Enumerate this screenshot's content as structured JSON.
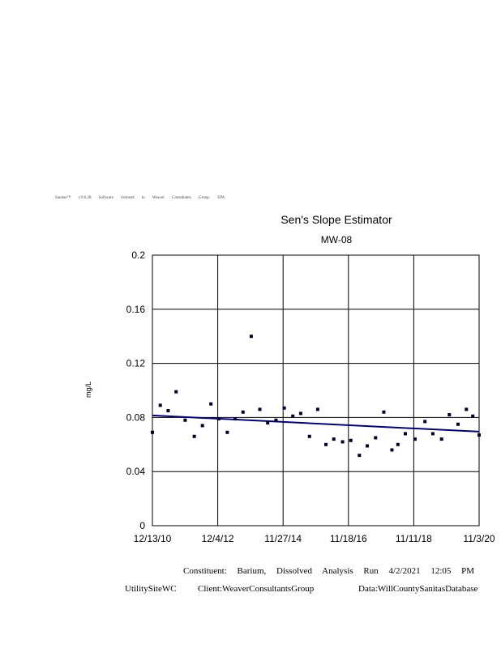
{
  "header": {
    "license_text": "Sanitas™ v.9.6.28 Software licensed to Weaver Consultants Group. EPA"
  },
  "footer": {
    "constituent_line": "Constituent: Barium, Dissolved Analysis Run 4/2/2021 12:05 PM",
    "utility": "UtilitySiteWC",
    "client": "Client:WeaverConsultantsGroup",
    "data_source": "Data:WillCountySanitasDatabase"
  },
  "colors": {
    "points": "#000033",
    "trend_line": "#000080",
    "grid": "#000000"
  },
  "chart_data": {
    "type": "scatter",
    "title": "Sen's Slope Estimator",
    "subtitle": "MW-08",
    "ylabel": "mg/L",
    "xlabel": "",
    "ylim": [
      0,
      0.2
    ],
    "xlim": [
      "2010-12-13",
      "2020-11-03"
    ],
    "yticks": [
      "0",
      "0.04",
      "0.08",
      "0.12",
      "0.16",
      "0.2"
    ],
    "xticks": [
      "12/13/10",
      "12/4/12",
      "11/27/14",
      "11/18/16",
      "11/11/18",
      "11/3/20"
    ],
    "grid": true,
    "series": [
      {
        "x": [
          "2010-12-13",
          "2011-03-10",
          "2011-06-05",
          "2011-09-01",
          "2011-12-10",
          "2012-03-20",
          "2012-06-18",
          "2012-09-20",
          "2012-12-15",
          "2013-03-20",
          "2013-06-15",
          "2013-09-10",
          "2013-12-10",
          "2014-03-15",
          "2014-06-10",
          "2014-09-10",
          "2014-12-10",
          "2015-03-15",
          "2015-06-10",
          "2015-09-15",
          "2015-12-15",
          "2016-03-15",
          "2016-06-10",
          "2016-09-15",
          "2016-12-15",
          "2017-03-20",
          "2017-06-15",
          "2017-09-15",
          "2017-12-15",
          "2018-03-15",
          "2018-05-20",
          "2018-08-10",
          "2018-11-25",
          "2019-03-15",
          "2019-06-10",
          "2019-09-15",
          "2019-12-10",
          "2020-03-15",
          "2020-06-15",
          "2020-08-25",
          "2020-11-03"
        ],
        "y": [
          0.069,
          0.089,
          0.085,
          0.099,
          0.078,
          0.066,
          0.074,
          0.09,
          0.079,
          0.069,
          0.079,
          0.084,
          0.14,
          0.086,
          0.076,
          0.078,
          0.087,
          0.081,
          0.083,
          0.066,
          0.086,
          0.06,
          0.064,
          0.062,
          0.063,
          0.052,
          0.059,
          0.065,
          0.084,
          0.056,
          0.06,
          0.068,
          0.064,
          0.077,
          0.068,
          0.064,
          0.082,
          0.075,
          0.086,
          0.081,
          0.067
        ]
      }
    ],
    "trend": {
      "x": [
        "2010-12-13",
        "2020-11-03"
      ],
      "y": [
        0.0815,
        0.0695
      ]
    }
  }
}
